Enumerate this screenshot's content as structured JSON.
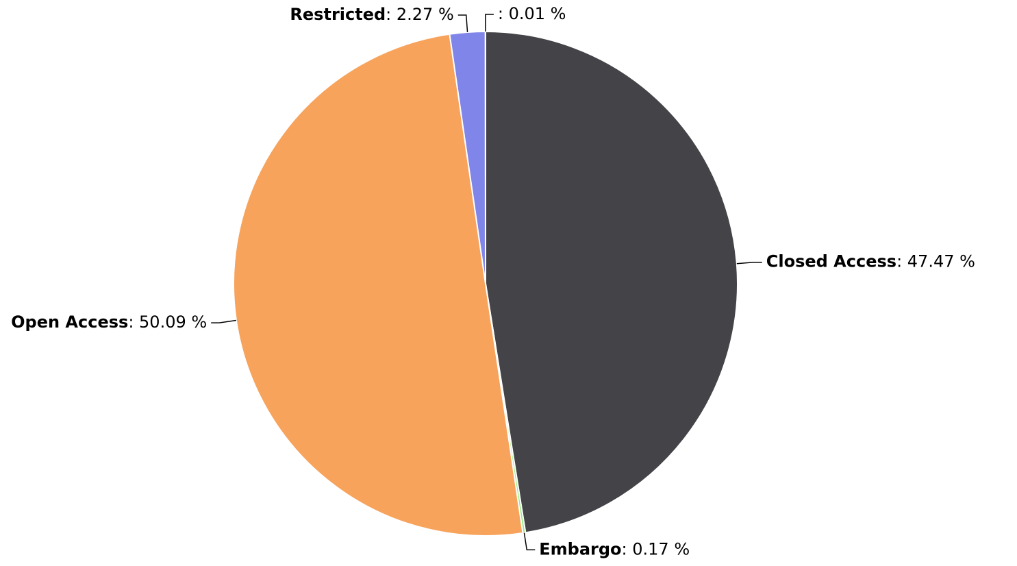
{
  "chart_data": {
    "type": "pie",
    "categories": [
      "Closed Access",
      "Embargo",
      "Open Access",
      "Restricted",
      null
    ],
    "values": [
      47.47,
      0.17,
      50.09,
      2.27,
      0.01
    ],
    "value_labels": [
      "47.47 %",
      "0.17 %",
      "50.09 %",
      "2.27 %",
      "0.01 %"
    ],
    "colors": [
      "#434348",
      "#90ed7d",
      "#f7a35c",
      "#8085e9",
      "#f15c80"
    ]
  }
}
